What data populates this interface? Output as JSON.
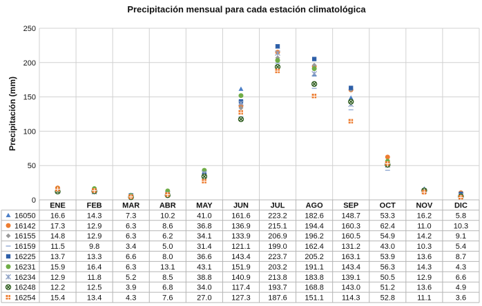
{
  "chart_data": {
    "type": "scatter",
    "title": "Precipitación mensual para cada estación climatológica",
    "ylabel": "Precipitación (mm)",
    "xlabel": "",
    "ylim": [
      0,
      250
    ],
    "yticks": [
      0,
      50,
      100,
      150,
      200,
      250
    ],
    "categories": [
      "ENE",
      "FEB",
      "MAR",
      "ABR",
      "MAY",
      "JUN",
      "JUL",
      "AGO",
      "SEP",
      "OCT",
      "NOV",
      "DIC"
    ],
    "series": [
      {
        "name": "16050",
        "marker": "triangle",
        "color": "#4a7ec7",
        "values": [
          16.6,
          14.3,
          7.3,
          10.2,
          41.0,
          161.6,
          223.2,
          182.6,
          148.7,
          53.3,
          16.2,
          5.8
        ]
      },
      {
        "name": "16142",
        "marker": "circle",
        "color": "#ed7d31",
        "values": [
          17.3,
          12.9,
          6.3,
          8.6,
          36.8,
          136.9,
          215.1,
          194.4,
          160.3,
          62.4,
          11.0,
          10.3
        ]
      },
      {
        "name": "16155",
        "marker": "diamond",
        "color": "#9a9a9a",
        "values": [
          14.8,
          12.9,
          6.3,
          6.2,
          34.1,
          133.9,
          206.9,
          196.2,
          160.5,
          54.9,
          14.2,
          9.1
        ]
      },
      {
        "name": "16159",
        "marker": "dash",
        "color": "#9fb4d9",
        "values": [
          11.5,
          9.8,
          3.4,
          5.0,
          31.4,
          121.1,
          199.0,
          162.4,
          131.2,
          43.0,
          10.3,
          5.4
        ]
      },
      {
        "name": "16225",
        "marker": "square",
        "color": "#2e5fa8",
        "values": [
          13.7,
          13.3,
          6.6,
          8.0,
          36.6,
          143.4,
          223.7,
          205.2,
          163.1,
          53.9,
          13.6,
          8.7
        ]
      },
      {
        "name": "16231",
        "marker": "circle",
        "color": "#70ad47",
        "values": [
          15.9,
          16.4,
          6.3,
          13.1,
          43.1,
          151.9,
          203.2,
          191.1,
          143.4,
          56.3,
          14.3,
          4.3
        ]
      },
      {
        "name": "16234",
        "marker": "star",
        "color": "#8da0c4",
        "values": [
          12.9,
          11.8,
          5.2,
          8.5,
          38.8,
          140.9,
          213.8,
          183.8,
          139.1,
          50.5,
          12.9,
          6.6
        ]
      },
      {
        "name": "16248",
        "marker": "xcircle",
        "color": "#2f5d1f",
        "values": [
          12.2,
          12.5,
          3.9,
          6.8,
          34.0,
          117.4,
          193.7,
          168.8,
          143.0,
          51.2,
          13.6,
          4.9
        ]
      },
      {
        "name": "16254",
        "marker": "cross",
        "color": "#ed7d31",
        "values": [
          15.4,
          13.4,
          4.3,
          7.6,
          27.0,
          127.3,
          187.6,
          151.1,
          114.3,
          52.8,
          11.1,
          3.6
        ]
      }
    ],
    "table": [
      [
        "16.6",
        "14.3",
        "7.3",
        "10.2",
        "41.0",
        "161.6",
        "223.2",
        "182.6",
        "148.7",
        "53.3",
        "16.2",
        "5.8"
      ],
      [
        "17.3",
        "12.9",
        "6.3",
        "8.6",
        "36.8",
        "136.9",
        "215.1",
        "194.4",
        "160.3",
        "62.4",
        "11.0",
        "10.3"
      ],
      [
        "14.8",
        "12.9",
        "6.3",
        "6.2",
        "34.1",
        "133.9",
        "206.9",
        "196.2",
        "160.5",
        "54.9",
        "14.2",
        "9.1"
      ],
      [
        "11.5",
        "9.8",
        "3.4",
        "5.0",
        "31.4",
        "121.1",
        "199.0",
        "162.4",
        "131.2",
        "43.0",
        "10.3",
        "5.4"
      ],
      [
        "13.7",
        "13.3",
        "6.6",
        "8.0",
        "36.6",
        "143.4",
        "223.7",
        "205.2",
        "163.1",
        "53.9",
        "13.6",
        "8.7"
      ],
      [
        "15.9",
        "16.4",
        "6.3",
        "13.1",
        "43.1",
        "151.9",
        "203.2",
        "191.1",
        "143.4",
        "56.3",
        "14.3",
        "4.3"
      ],
      [
        "12.9",
        "11.8",
        "5.2",
        "8.5",
        "38.8",
        "140.9",
        "213.8",
        "183.8",
        "139.1",
        "50.5",
        "12.9",
        "6.6"
      ],
      [
        "12.2",
        "12.5",
        "3.9",
        "6.8",
        "34.0",
        "117.4",
        "193.7",
        "168.8",
        "143.0",
        "51.2",
        "13.6",
        "4.9"
      ],
      [
        "15.4",
        "13.4",
        "4.3",
        "7.6",
        "27.0",
        "127.3",
        "187.6",
        "151.1",
        "114.3",
        "52.8",
        "11.1",
        "3.6"
      ]
    ],
    "grid": true,
    "legend": "data-table-left"
  }
}
